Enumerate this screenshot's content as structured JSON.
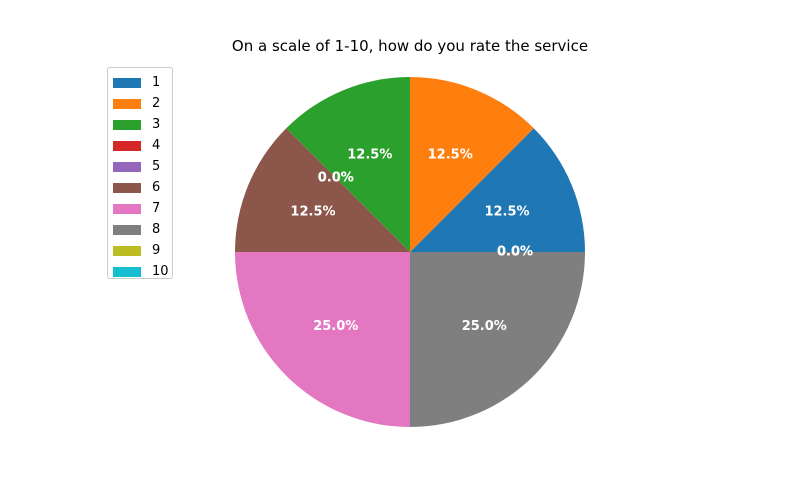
{
  "chart_data": {
    "type": "pie",
    "title": "On a scale of 1-10, how do you rate the service",
    "categories": [
      "1",
      "2",
      "3",
      "4",
      "5",
      "6",
      "7",
      "8",
      "9",
      "10"
    ],
    "values": [
      12.5,
      12.5,
      12.5,
      0,
      0,
      12.5,
      25,
      25,
      0,
      0
    ],
    "data_labels": [
      "12.5%",
      "12.5%",
      "12.5%",
      "0.0%",
      "0.0%",
      "12.5%",
      "25.0%",
      "25.0%",
      "0.0%",
      "0.0%"
    ],
    "colors": [
      "#1f77b4",
      "#ff7f0e",
      "#2ca02c",
      "#d62728",
      "#9467bd",
      "#8c564b",
      "#e377c2",
      "#7f7f7f",
      "#bcbd22",
      "#17becf"
    ],
    "start_angle": 0,
    "direction": "counterclockwise",
    "legend_position": "upper-left"
  }
}
